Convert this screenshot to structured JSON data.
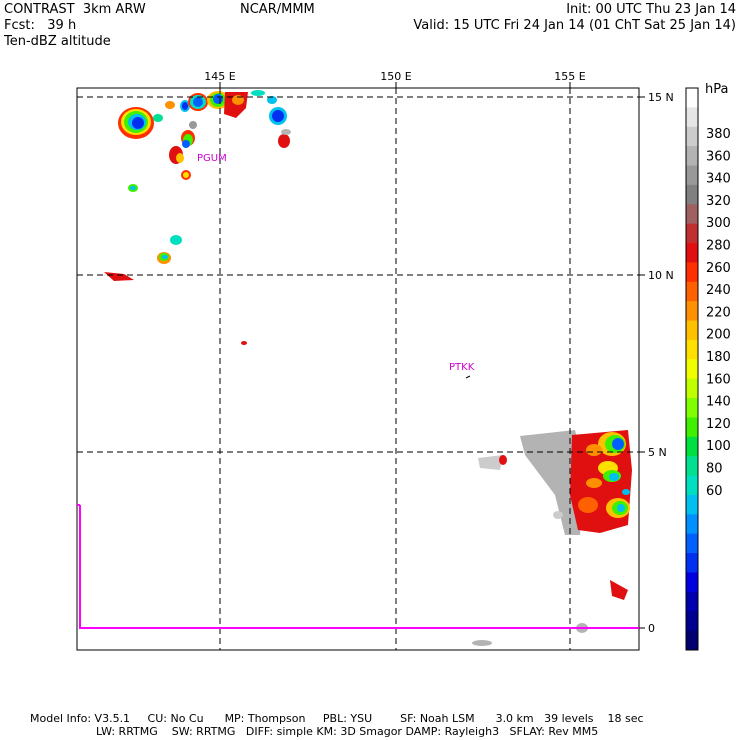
{
  "header": {
    "title_left": "CONTRAST  3km ARW",
    "fcst": "Fcst:   39 h",
    "field": "Ten-dBZ altitude",
    "center": "NCAR/MMM",
    "init": "Init: 00 UTC Thu 23 Jan 14",
    "valid": "Valid: 15 UTC Fri 24 Jan 14 (01 ChT Sat 25 Jan 14)"
  },
  "map": {
    "lon_labels": [
      "145 E",
      "150 E",
      "155 E"
    ],
    "lat_labels": [
      "15 N",
      "10 N",
      "5 N",
      "0"
    ],
    "stations": [
      {
        "name": "PGUM",
        "lon": 144.8,
        "lat": 13.5
      },
      {
        "name": "PTKK",
        "lon": 151.8,
        "lat": 7.4
      }
    ]
  },
  "colorbar": {
    "unit": "hPa",
    "labels": [
      "380",
      "360",
      "340",
      "320",
      "300",
      "280",
      "260",
      "240",
      "220",
      "200",
      "180",
      "160",
      "140",
      "120",
      "100",
      "80",
      "60"
    ],
    "colors": [
      "#ffffff",
      "#e6e6e6",
      "#cccccc",
      "#b3b3b3",
      "#999999",
      "#808080",
      "#a06060",
      "#c03030",
      "#e01010",
      "#ff3000",
      "#ff6000",
      "#ff9000",
      "#ffc000",
      "#ffe000",
      "#f0ff00",
      "#c0ff00",
      "#80ff00",
      "#40f000",
      "#00e040",
      "#00e090",
      "#00e0c0",
      "#00c0f0",
      "#0090ff",
      "#0060ff",
      "#0030f0",
      "#0000e0",
      "#0000b0",
      "#000090",
      "#000070"
    ]
  },
  "footer": {
    "line1": "Model Info: V3.5.1     CU: No Cu      MP: Thompson     PBL: YSU        SF: Noah LSM      3.0 km   39 levels    18 sec",
    "line2": "LW: RRTMG    SW: RRTMG   DIFF: simple KM: 3D Smagor DAMP: Rayleigh3   SFLAY: Rev MM5"
  }
}
